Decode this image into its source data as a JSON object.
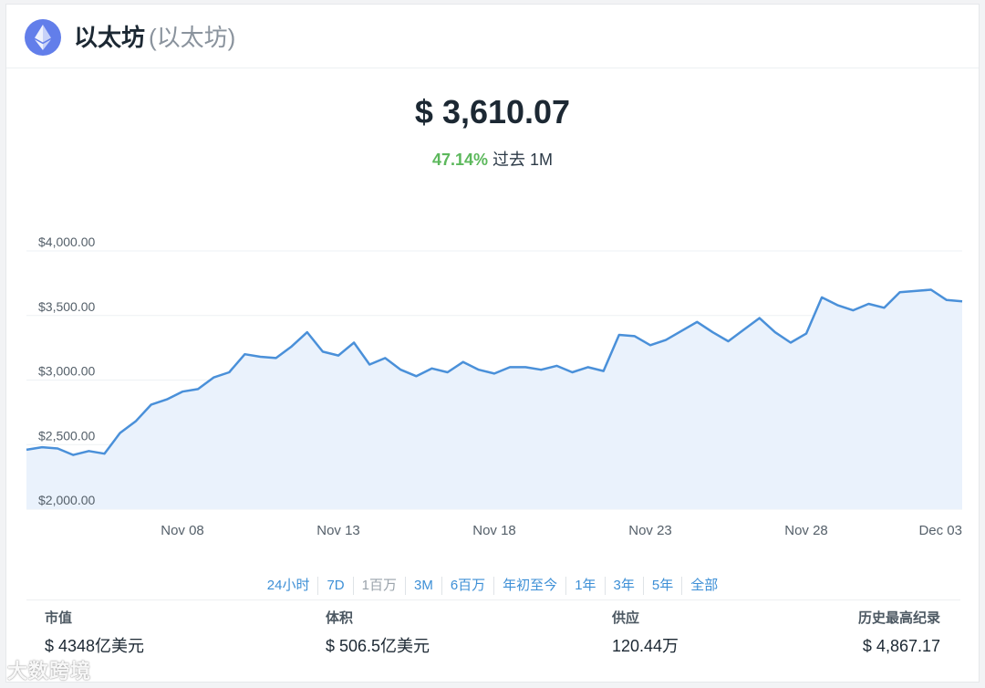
{
  "header": {
    "coin_name": "以太坊",
    "coin_alias": "(以太坊)",
    "logo_icon": "ethereum-icon",
    "logo_color": "#627eea"
  },
  "summary": {
    "price": "$ 3,610.07",
    "change_pct": "47.14%",
    "change_period": "过去 1M",
    "change_color": "#5cb85c"
  },
  "chart_data": {
    "type": "area",
    "title": "",
    "xlabel": "",
    "ylabel": "",
    "ylim": [
      2000,
      4000
    ],
    "yticks": [
      2000,
      2500,
      3000,
      3500,
      4000
    ],
    "ytick_labels": [
      "$2,000.00",
      "$2,500.00",
      "$3,000.00",
      "$3,500.00",
      "$4,000.00"
    ],
    "xticks": [
      5,
      10,
      15,
      20,
      25,
      30
    ],
    "xtick_labels": [
      "Nov 08",
      "Nov 13",
      "Nov 18",
      "Nov 23",
      "Nov 28",
      "Dec 03"
    ],
    "grid": true,
    "line_color": "#4a90d9",
    "fill_color": "#eaf2fc",
    "series": [
      {
        "x": [
          0,
          0.5,
          1,
          1.5,
          2,
          2.5,
          3,
          3.5,
          4,
          4.5,
          5,
          5.5,
          6,
          6.5,
          7,
          7.5,
          8,
          8.5,
          9,
          9.5,
          10,
          10.5,
          11,
          11.5,
          12,
          12.5,
          13,
          13.5,
          14,
          14.5,
          15,
          15.5,
          16,
          16.5,
          17,
          17.5,
          18,
          18.5,
          19,
          19.5,
          20,
          20.5,
          21,
          21.5,
          22,
          22.5,
          23,
          23.5,
          24,
          24.5,
          25,
          25.5,
          26,
          26.5,
          27,
          27.5,
          28,
          28.5,
          29,
          29.5,
          30
        ],
        "values": [
          2460,
          2480,
          2470,
          2420,
          2450,
          2430,
          2590,
          2680,
          2810,
          2850,
          2910,
          2930,
          3020,
          3060,
          3200,
          3180,
          3170,
          3260,
          3370,
          3220,
          3190,
          3290,
          3120,
          3170,
          3080,
          3030,
          3090,
          3060,
          3140,
          3080,
          3050,
          3100,
          3100,
          3080,
          3110,
          3060,
          3100,
          3070,
          3350,
          3340,
          3270,
          3310,
          3380,
          3450,
          3370,
          3300,
          3390,
          3480,
          3370,
          3290,
          3360,
          3640,
          3580,
          3540,
          3590,
          3560,
          3680,
          3690,
          3700,
          3620,
          3610
        ]
      }
    ]
  },
  "ranges": {
    "items": [
      "24小时",
      "7D",
      "1百万",
      "3M",
      "6百万",
      "年初至今",
      "1年",
      "3年",
      "5年",
      "全部"
    ],
    "active_index": 2
  },
  "stats": {
    "market_cap_label": "市值",
    "market_cap_value": "$ 4348亿美元",
    "volume_label": "体积",
    "volume_value": "$ 506.5亿美元",
    "supply_label": "供应",
    "supply_value": "120.44万",
    "ath_label": "历史最高纪录",
    "ath_value": "$ 4,867.17"
  },
  "watermark": "大数跨境"
}
